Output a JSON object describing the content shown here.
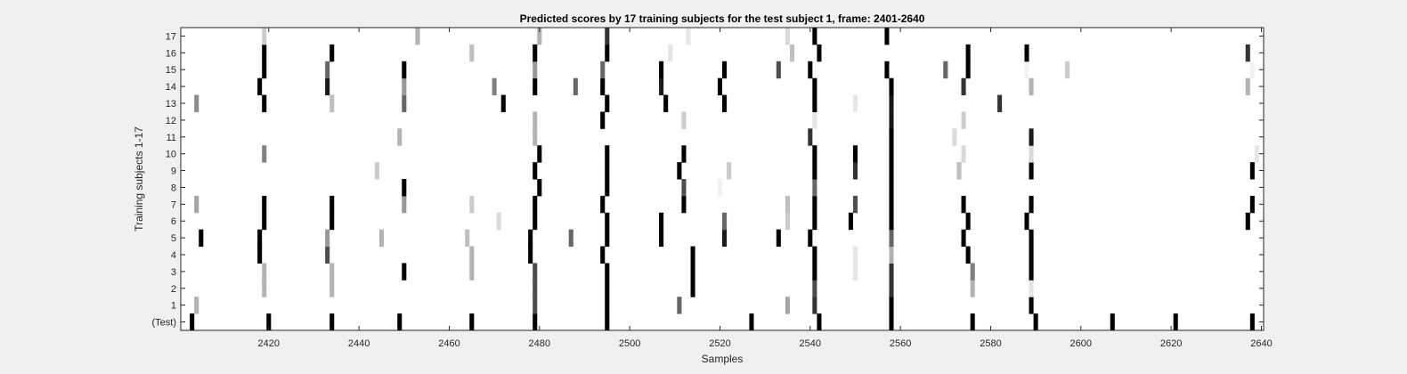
{
  "chart_data": {
    "type": "heatmap",
    "title": "Predicted scores by 17 training subjects for the test subject 1, frame: 2401-2640",
    "xlabel": "Samples",
    "ylabel": "Training subjects 1-17",
    "xlim": [
      2401,
      2640
    ],
    "xticks": [
      2420,
      2440,
      2460,
      2480,
      2500,
      2520,
      2540,
      2560,
      2580,
      2600,
      2620,
      2640
    ],
    "rows": [
      "(Test)",
      "1",
      "2",
      "3",
      "4",
      "5",
      "6",
      "7",
      "8",
      "9",
      "10",
      "11",
      "12",
      "13",
      "14",
      "15",
      "16",
      "17"
    ],
    "colormap": "gray (white = 0, black = 1)",
    "grid": false,
    "events": {
      "(Test)": [
        [
          2403,
          1.0
        ],
        [
          2420,
          1.0
        ],
        [
          2434,
          1.0
        ],
        [
          2449,
          1.0
        ],
        [
          2465,
          1.0
        ],
        [
          2479,
          1.0
        ],
        [
          2495,
          1.0
        ],
        [
          2527,
          1.0
        ],
        [
          2542,
          1.0
        ],
        [
          2558,
          1.0
        ],
        [
          2576,
          1.0
        ],
        [
          2590,
          1.0
        ],
        [
          2607,
          1.0
        ],
        [
          2621,
          1.0
        ],
        [
          2638,
          1.0
        ]
      ],
      "1": [
        [
          2404,
          0.3
        ],
        [
          2479,
          0.7
        ],
        [
          2495,
          1.0
        ],
        [
          2511,
          0.6
        ],
        [
          2535,
          0.35
        ],
        [
          2541,
          0.8
        ],
        [
          2558,
          1.0
        ],
        [
          2589,
          1.0
        ]
      ],
      "2": [
        [
          2419,
          0.3
        ],
        [
          2434,
          0.3
        ],
        [
          2479,
          0.7
        ],
        [
          2495,
          1.0
        ],
        [
          2514,
          1.0
        ],
        [
          2541,
          0.7
        ],
        [
          2558,
          0.8
        ],
        [
          2576,
          0.3
        ],
        [
          2589,
          0.1
        ]
      ],
      "3": [
        [
          2419,
          0.3
        ],
        [
          2434,
          0.3
        ],
        [
          2450,
          1.0
        ],
        [
          2465,
          0.3
        ],
        [
          2479,
          0.7
        ],
        [
          2495,
          1.0
        ],
        [
          2514,
          1.0
        ],
        [
          2541,
          1.0
        ],
        [
          2550,
          0.1
        ],
        [
          2558,
          0.8
        ],
        [
          2576,
          0.5
        ],
        [
          2589,
          1.0
        ]
      ],
      "4": [
        [
          2418,
          1.0
        ],
        [
          2433,
          0.7
        ],
        [
          2465,
          0.3
        ],
        [
          2478,
          1.0
        ],
        [
          2494,
          1.0
        ],
        [
          2514,
          1.0
        ],
        [
          2541,
          1.0
        ],
        [
          2550,
          0.1
        ],
        [
          2558,
          0.3
        ],
        [
          2575,
          1.0
        ],
        [
          2589,
          1.0
        ]
      ],
      "5": [
        [
          2405,
          1.0
        ],
        [
          2418,
          1.0
        ],
        [
          2433,
          0.4
        ],
        [
          2445,
          0.3
        ],
        [
          2464,
          0.25
        ],
        [
          2478,
          1.0
        ],
        [
          2487,
          0.6
        ],
        [
          2495,
          1.0
        ],
        [
          2507,
          1.0
        ],
        [
          2521,
          0.9
        ],
        [
          2533,
          1.0
        ],
        [
          2540,
          1.0
        ],
        [
          2558,
          0.6
        ],
        [
          2574,
          1.0
        ],
        [
          2589,
          1.0
        ]
      ],
      "6": [
        [
          2419,
          1.0
        ],
        [
          2434,
          1.0
        ],
        [
          2471,
          0.15
        ],
        [
          2479,
          1.0
        ],
        [
          2495,
          1.0
        ],
        [
          2507,
          1.0
        ],
        [
          2521,
          0.6
        ],
        [
          2535,
          0.2
        ],
        [
          2541,
          1.0
        ],
        [
          2549,
          1.0
        ],
        [
          2558,
          1.0
        ],
        [
          2575,
          1.0
        ],
        [
          2588,
          1.0
        ],
        [
          2637,
          1.0
        ]
      ],
      "7": [
        [
          2404,
          0.35
        ],
        [
          2419,
          1.0
        ],
        [
          2434,
          1.0
        ],
        [
          2450,
          0.4
        ],
        [
          2465,
          0.2
        ],
        [
          2479,
          1.0
        ],
        [
          2494,
          1.0
        ],
        [
          2512,
          1.0
        ],
        [
          2535,
          0.25
        ],
        [
          2541,
          1.0
        ],
        [
          2550,
          0.7
        ],
        [
          2558,
          1.0
        ],
        [
          2574,
          1.0
        ],
        [
          2589,
          1.0
        ],
        [
          2638,
          1.0
        ]
      ],
      "8": [
        [
          2450,
          1.0
        ],
        [
          2480,
          1.0
        ],
        [
          2495,
          1.0
        ],
        [
          2512,
          0.7
        ],
        [
          2520,
          0.05
        ],
        [
          2541,
          0.6
        ],
        [
          2558,
          1.0
        ]
      ],
      "9": [
        [
          2444,
          0.2
        ],
        [
          2479,
          1.0
        ],
        [
          2495,
          1.0
        ],
        [
          2511,
          1.0
        ],
        [
          2522,
          0.2
        ],
        [
          2541,
          1.0
        ],
        [
          2550,
          0.8
        ],
        [
          2558,
          1.0
        ],
        [
          2573,
          0.25
        ],
        [
          2589,
          1.0
        ],
        [
          2638,
          1.0
        ]
      ],
      "10": [
        [
          2419,
          0.5
        ],
        [
          2480,
          1.0
        ],
        [
          2495,
          1.0
        ],
        [
          2512,
          1.0
        ],
        [
          2541,
          1.0
        ],
        [
          2550,
          1.0
        ],
        [
          2558,
          1.0
        ],
        [
          2574,
          0.15
        ],
        [
          2589,
          0.15
        ],
        [
          2639,
          0.1
        ]
      ],
      "11": [
        [
          2449,
          0.3
        ],
        [
          2479,
          0.3
        ],
        [
          2540,
          0.8
        ],
        [
          2558,
          1.0
        ],
        [
          2572,
          0.15
        ],
        [
          2589,
          0.9
        ]
      ],
      "12": [
        [
          2479,
          0.3
        ],
        [
          2494,
          1.0
        ],
        [
          2512,
          0.2
        ],
        [
          2541,
          0.1
        ],
        [
          2558,
          0.9
        ],
        [
          2574,
          0.2
        ]
      ],
      "13": [
        [
          2404,
          0.45
        ],
        [
          2419,
          1.0
        ],
        [
          2434,
          0.25
        ],
        [
          2450,
          0.6
        ],
        [
          2472,
          1.0
        ],
        [
          2495,
          1.0
        ],
        [
          2508,
          1.0
        ],
        [
          2521,
          1.0
        ],
        [
          2541,
          1.0
        ],
        [
          2550,
          0.1
        ],
        [
          2558,
          0.9
        ],
        [
          2582,
          0.8
        ]
      ],
      "14": [
        [
          2418,
          1.0
        ],
        [
          2433,
          0.9
        ],
        [
          2450,
          0.4
        ],
        [
          2470,
          0.5
        ],
        [
          2479,
          1.0
        ],
        [
          2488,
          0.6
        ],
        [
          2494,
          1.0
        ],
        [
          2507,
          0.9
        ],
        [
          2520,
          1.0
        ],
        [
          2541,
          1.0
        ],
        [
          2558,
          1.0
        ],
        [
          2574,
          0.8
        ],
        [
          2589,
          0.3
        ],
        [
          2637,
          0.3
        ]
      ],
      "15": [
        [
          2419,
          1.0
        ],
        [
          2433,
          0.6
        ],
        [
          2450,
          1.0
        ],
        [
          2479,
          0.4
        ],
        [
          2494,
          0.6
        ],
        [
          2507,
          1.0
        ],
        [
          2521,
          1.0
        ],
        [
          2533,
          0.7
        ],
        [
          2540,
          1.0
        ],
        [
          2557,
          1.0
        ],
        [
          2570,
          0.6
        ],
        [
          2575,
          1.0
        ],
        [
          2588,
          0.05
        ],
        [
          2597,
          0.2
        ],
        [
          2638,
          0.05
        ]
      ],
      "16": [
        [
          2419,
          1.0
        ],
        [
          2434,
          1.0
        ],
        [
          2465,
          0.25
        ],
        [
          2479,
          1.0
        ],
        [
          2495,
          1.0
        ],
        [
          2509,
          0.1
        ],
        [
          2536,
          0.25
        ],
        [
          2542,
          1.0
        ],
        [
          2575,
          1.0
        ],
        [
          2588,
          1.0
        ],
        [
          2637,
          0.8
        ]
      ],
      "17": [
        [
          2419,
          0.2
        ],
        [
          2453,
          0.3
        ],
        [
          2480,
          0.3
        ],
        [
          2495,
          0.8
        ],
        [
          2513,
          0.1
        ],
        [
          2535,
          0.15
        ],
        [
          2541,
          1.0
        ],
        [
          2557,
          1.0
        ]
      ]
    }
  }
}
